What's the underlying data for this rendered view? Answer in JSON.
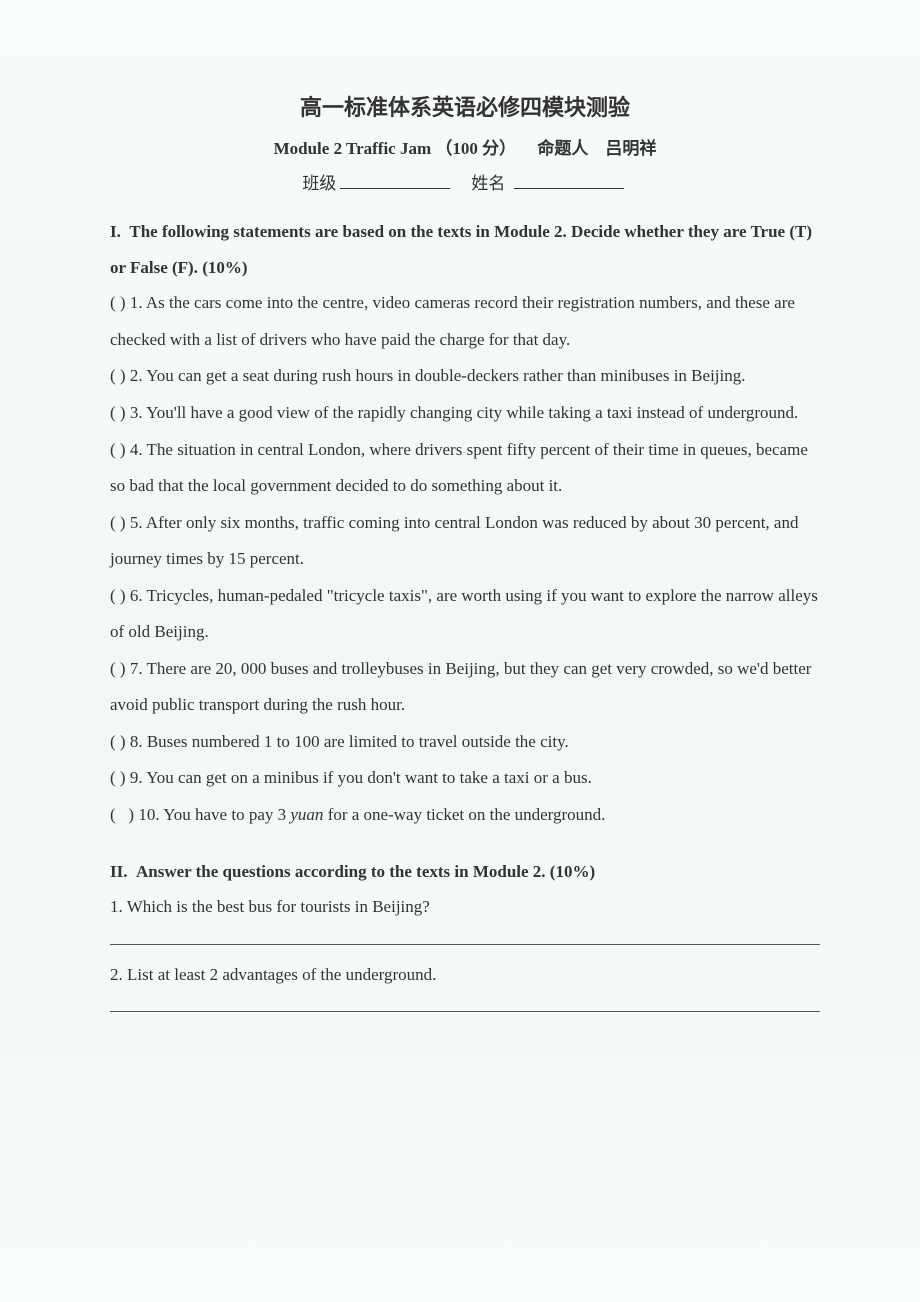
{
  "title": "高一标准体系英语必修四模块测验",
  "subtitle": {
    "module_en": "Module 2 Traffic Jam",
    "points": "（100 分）",
    "author_label": "命题人",
    "author_name": "吕明祥"
  },
  "form_line": {
    "class_label": "班级",
    "name_label": "姓名"
  },
  "section1": {
    "heading_prefix": "I.",
    "heading": "The following statements are based on the texts in Module 2. Decide whether they are True (T) or False (F). (10%)",
    "items": [
      "(   ) 1. As the cars come into the centre, video cameras record their registration numbers, and these are checked with a list of drivers who have paid the charge for that day.",
      "(   ) 2. You can get a seat during rush hours in double-deckers rather than minibuses in Beijing.",
      "(   ) 3. You'll have a good view of the rapidly changing city while taking a taxi instead of underground.",
      "(   ) 4. The situation in central London, where drivers spent fifty percent of their time in queues, became so bad that the local government decided to do something about it.",
      "(   ) 5. After only six months, traffic coming into central London was reduced by about 30 percent, and journey times by 15 percent.",
      "(   ) 6. Tricycles, human-pedaled \"tricycle taxis\", are worth using if you want to explore the narrow alleys of old Beijing.",
      "(   ) 7. There are 20, 000 buses and trolleybuses in Beijing, but they can get very crowded, so we'd better avoid public transport during the rush hour.",
      "(   ) 8. Buses numbered 1 to 100 are limited to travel outside the city.",
      "(   ) 9. You can get on a minibus if you don't want to take a taxi or a bus.",
      "(   ) 10. You have to pay 3 yuan for a one-way ticket on the underground."
    ]
  },
  "section2": {
    "heading_prefix": "II.",
    "heading": "Answer the questions according to the texts in Module 2. (10%)",
    "questions": [
      "1. Which is the best bus for tourists in Beijing?",
      "2. List at least 2 advantages of the underground."
    ]
  },
  "colors": {
    "text": "#333333",
    "background_top": "#f8fcfa",
    "background_mid": "#f2f8f5",
    "rule": "#555555"
  },
  "typography": {
    "title_fontsize": 22,
    "body_fontsize": 17,
    "line_height": 2.15,
    "title_font": "SimSun",
    "body_font": "Times New Roman"
  }
}
